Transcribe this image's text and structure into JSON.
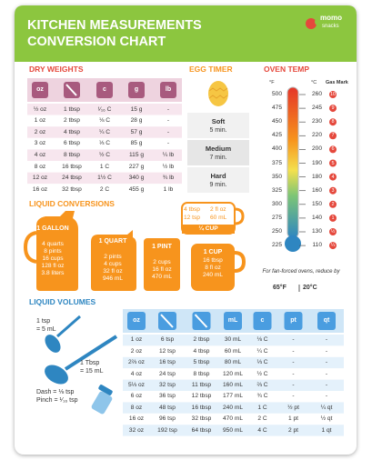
{
  "header": {
    "title_line1": "KITCHEN MEASUREMENTS",
    "title_line2": "CONVERSION CHART",
    "logo": [
      "momo",
      "snacks"
    ]
  },
  "dry_weights": {
    "title": "DRY WEIGHTS",
    "headers": [
      "oz",
      null,
      "c",
      "g",
      "lb"
    ],
    "rows": [
      [
        "½ oz",
        "1 tbsp",
        "¹⁄₁₆ C",
        "15 g",
        "-"
      ],
      [
        "1 oz",
        "2 tbsp",
        "⅛ C",
        "28 g",
        "-"
      ],
      [
        "2 oz",
        "4 tbsp",
        "¼ C",
        "57 g",
        "-"
      ],
      [
        "3 oz",
        "6 tbsp",
        "⅓ C",
        "85 g",
        "-"
      ],
      [
        "4 oz",
        "8 tbsp",
        "½ C",
        "115 g",
        "¼ lb"
      ],
      [
        "8 oz",
        "16 tbsp",
        "1 C",
        "227 g",
        "½ lb"
      ],
      [
        "12 oz",
        "24 tbsp",
        "1½ C",
        "340 g",
        "¾ lb"
      ],
      [
        "16 oz",
        "32 tbsp",
        "2 C",
        "455 g",
        "1 lb"
      ]
    ]
  },
  "egg_timer": {
    "title": "EGG TIMER",
    "items": [
      {
        "label": "Soft",
        "time": "5 min."
      },
      {
        "label": "Medium",
        "time": "7 min."
      },
      {
        "label": "Hard",
        "time": "9 min."
      }
    ]
  },
  "oven_temp": {
    "title": "OVEN TEMP",
    "headers": [
      "°F",
      "°C",
      "Gas Mark"
    ],
    "fahrenheit": [
      500,
      475,
      450,
      425,
      400,
      375,
      350,
      325,
      300,
      275,
      250,
      225
    ],
    "celsius": [
      260,
      245,
      230,
      220,
      200,
      190,
      180,
      160,
      150,
      140,
      130,
      110
    ],
    "gas_mark": [
      10,
      9,
      8,
      7,
      6,
      5,
      4,
      3,
      2,
      1,
      "½",
      "¼"
    ],
    "note": "For fan-forced ovens, reduce by",
    "reduction": [
      "65°F",
      "20°C"
    ]
  },
  "liquid_conversions": {
    "title": "LIQUID CONVERSIONS",
    "vessels": [
      {
        "name": "1 GALLON",
        "lines": [
          "4 quarts",
          "8 pints",
          "16 cups",
          "128 fl oz",
          "3.8 liters"
        ]
      },
      {
        "name": "1 QUART",
        "lines": [
          "2 pints",
          "4 cups",
          "32 fl oz",
          "946 mL"
        ]
      },
      {
        "name": "1 PINT",
        "lines": [
          "2 cups",
          "16 fl oz",
          "470 mL"
        ]
      },
      {
        "name": "1 CUP",
        "lines": [
          "16 tbsp",
          "8 fl oz",
          "240 mL"
        ]
      }
    ],
    "quarter_cup": {
      "name": "¼ CUP",
      "lines": [
        "4 tbsp",
        "12 tsp",
        "2 fl oz",
        "60 mL"
      ]
    }
  },
  "liquid_volumes": {
    "title": "LIQUID VOLUMES",
    "notes": [
      "1 tsp",
      "= 5 mL",
      "1 Tbsp",
      "= 15 mL",
      "Dash = ⅛ tsp",
      "Pinch = ¹⁄₁₆ tsp"
    ],
    "headers": [
      "oz",
      null,
      null,
      "mL",
      "c",
      "pt",
      "qt"
    ],
    "rows": [
      [
        "1 oz",
        "6 tsp",
        "2 tbsp",
        "30 mL",
        "⅛ C",
        "-",
        "-"
      ],
      [
        "2 oz",
        "12 tsp",
        "4 tbsp",
        "60 mL",
        "¼ C",
        "-",
        "-"
      ],
      [
        "2⅔ oz",
        "16 tsp",
        "5 tbsp",
        "80 mL",
        "⅓ C",
        "-",
        "-"
      ],
      [
        "4 oz",
        "24 tsp",
        "8 tbsp",
        "120 mL",
        "½ C",
        "-",
        "-"
      ],
      [
        "5⅓ oz",
        "32 tsp",
        "11 tbsp",
        "160 mL",
        "⅔ C",
        "-",
        "-"
      ],
      [
        "6 oz",
        "36 tsp",
        "12 tbsp",
        "177 mL",
        "¾ C",
        "-",
        "-"
      ],
      [
        "8 oz",
        "48 tsp",
        "16 tbsp",
        "240 mL",
        "1 C",
        "½ pt",
        "¼ qt"
      ],
      [
        "16 oz",
        "96 tsp",
        "32 tbsp",
        "470 mL",
        "2 C",
        "1 pt",
        "½ qt"
      ],
      [
        "32 oz",
        "192 tsp",
        "64 tbsp",
        "950 mL",
        "4 C",
        "2 pt",
        "1 qt"
      ]
    ]
  }
}
